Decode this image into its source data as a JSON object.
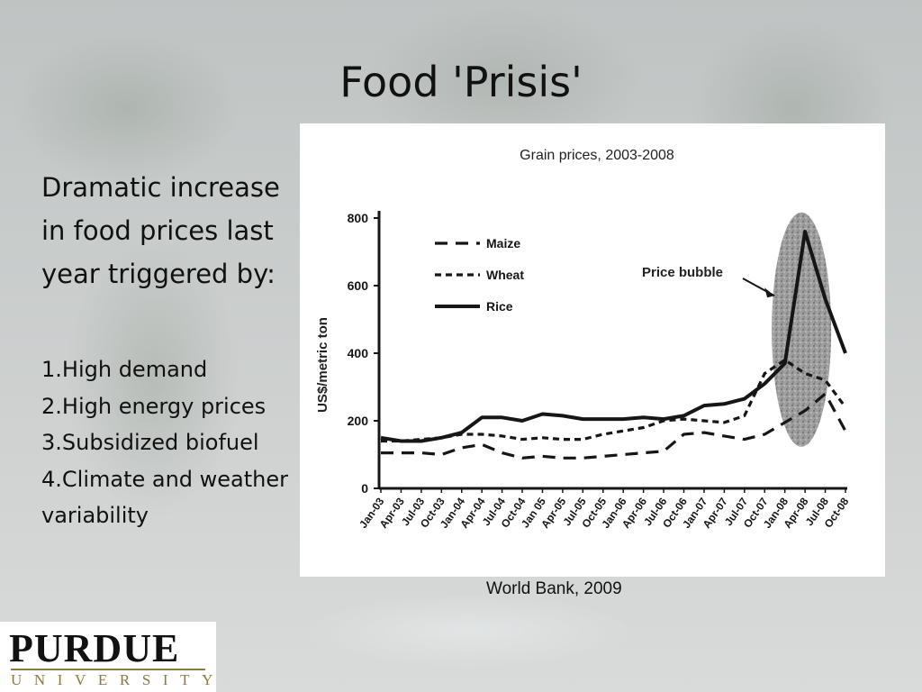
{
  "slide": {
    "title": "Food 'Prisis'",
    "intro": "Dramatic increase in food prices last year triggered by:",
    "causes": [
      "1.High demand",
      "2.High energy prices",
      "3.Subsidized biofuel",
      "4.Climate and weather variability"
    ],
    "source": "World Bank, 2009"
  },
  "logo": {
    "name": "PURDUE",
    "subtitle": "UNIVERSITY"
  },
  "chart_data": {
    "type": "line",
    "title": "Grain prices, 2003-2008",
    "xlabel": "",
    "ylabel": "US$/metric ton",
    "ylim": [
      0,
      800
    ],
    "yticks": [
      0,
      200,
      400,
      600,
      800
    ],
    "grid": false,
    "legend_position": "top-left",
    "categories": [
      "Jan-03",
      "Apr-03",
      "Jul-03",
      "Oct-03",
      "Jan-04",
      "Apr-04",
      "Jul-04",
      "Oct-04",
      "Jan-05",
      "Apr-05",
      "Jul-05",
      "Oct-05",
      "Jan-06",
      "Apr-06",
      "Jul-06",
      "Oct-06",
      "Jan-07",
      "Apr-07",
      "Jul-07",
      "Oct-07",
      "Jan-08",
      "Apr-08",
      "Jul-08",
      "Oct-08"
    ],
    "x_tick_labels": [
      "Jan-03",
      "Apr-03",
      "Jul-03",
      "Oct-03",
      "Jan-04",
      "Apr-04",
      "Jul-04",
      "Oct-04",
      "Jan 05",
      "Apr-05",
      "Jul-05",
      "Oct-05",
      "Jan-06",
      "Apr-06",
      "Jul-06",
      "Oct-06",
      "Jan-07",
      "Apr-07",
      "Jul-07",
      "Oct-07",
      "Jan-08",
      "Apr-08",
      "Jul-08",
      "Oct-08"
    ],
    "series": [
      {
        "name": "Maize",
        "dash": "long-dash",
        "values": [
          105,
          105,
          105,
          100,
          120,
          130,
          105,
          90,
          95,
          90,
          90,
          95,
          100,
          105,
          110,
          160,
          165,
          155,
          145,
          160,
          195,
          230,
          280,
          170
        ]
      },
      {
        "name": "Wheat",
        "dash": "short-dash",
        "values": [
          140,
          140,
          145,
          150,
          160,
          160,
          155,
          145,
          150,
          145,
          145,
          160,
          170,
          180,
          200,
          205,
          200,
          195,
          215,
          340,
          380,
          340,
          320,
          240
        ]
      },
      {
        "name": "Rice",
        "dash": "solid",
        "values": [
          150,
          140,
          140,
          150,
          165,
          210,
          210,
          200,
          220,
          215,
          205,
          205,
          205,
          210,
          205,
          215,
          245,
          250,
          265,
          310,
          370,
          760,
          560,
          400
        ]
      }
    ],
    "annotation": {
      "text": "Price bubble",
      "near": "Apr-08"
    }
  },
  "colors": {
    "ink": "#161616",
    "bubble": "#8a8a8a"
  }
}
